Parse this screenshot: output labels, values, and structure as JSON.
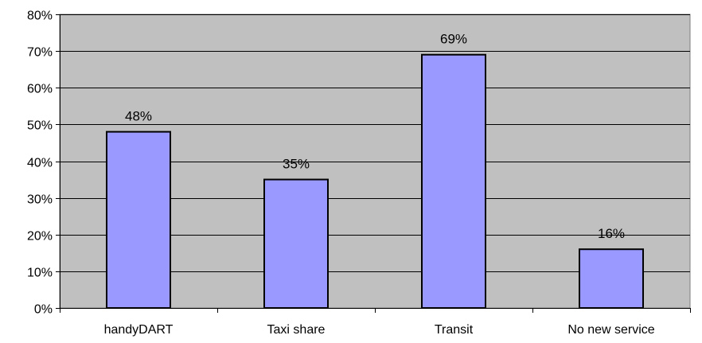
{
  "chart_data": {
    "type": "bar",
    "categories": [
      "handyDART",
      "Taxi share",
      "Transit",
      "No new service"
    ],
    "values": [
      48,
      35,
      69,
      16
    ],
    "data_labels": [
      "48%",
      "35%",
      "69%",
      "16%"
    ],
    "ylim": [
      0,
      80
    ],
    "yticks": [
      0,
      10,
      20,
      30,
      40,
      50,
      60,
      70,
      80
    ],
    "ytick_labels": [
      "0%",
      "10%",
      "20%",
      "30%",
      "40%",
      "50%",
      "60%",
      "70%",
      "80%"
    ],
    "grid": true,
    "colors": {
      "plot_background": "#c0c0c0",
      "bar_fill": "#9999ff",
      "bar_stroke": "#000000",
      "gridline": "#000000"
    }
  }
}
